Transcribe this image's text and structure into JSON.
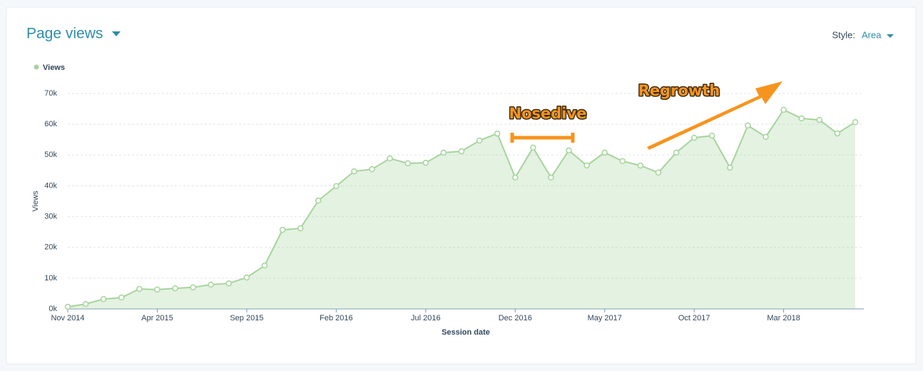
{
  "chart_data": {
    "type": "area",
    "title": "Page views",
    "style_label": "Style:",
    "style_value": "Area",
    "x_label": "Session date",
    "y_label": "Views",
    "categories": [
      "Nov 2014",
      null,
      null,
      null,
      null,
      "Apr 2015",
      null,
      null,
      null,
      null,
      "Sep 2015",
      null,
      null,
      null,
      null,
      "Feb 2016",
      null,
      null,
      null,
      null,
      "Jul 2016",
      null,
      null,
      null,
      null,
      "Dec 2016",
      null,
      null,
      null,
      null,
      "May 2017",
      null,
      null,
      null,
      null,
      "Oct 2017",
      null,
      null,
      null,
      null,
      "Mar 2018",
      null,
      null,
      null,
      null
    ],
    "series": [
      {
        "name": "Views",
        "color": "#a6d49d",
        "values": [
          700,
          1600,
          3200,
          3700,
          6500,
          6300,
          6700,
          7000,
          7900,
          8300,
          10200,
          14100,
          25700,
          26200,
          35200,
          39900,
          44700,
          45400,
          48900,
          47300,
          47500,
          50800,
          51200,
          54700,
          57000,
          42700,
          52400,
          42700,
          51500,
          46600,
          50800,
          48000,
          46600,
          44300,
          50800,
          55600,
          56300,
          45900,
          59600,
          55900,
          64700,
          61900,
          61400,
          57000,
          60700
        ]
      }
    ],
    "ylim": [
      0,
      70000
    ],
    "yticks": [
      {
        "value": 0,
        "label": "0k"
      },
      {
        "value": 10000,
        "label": "10k"
      },
      {
        "value": 20000,
        "label": "20k"
      },
      {
        "value": 30000,
        "label": "30k"
      },
      {
        "value": 40000,
        "label": "40k"
      },
      {
        "value": 50000,
        "label": "50k"
      },
      {
        "value": 60000,
        "label": "60k"
      },
      {
        "value": 70000,
        "label": "70k"
      }
    ],
    "grid": true,
    "annotations": [
      "Nosedive",
      "Regrowth"
    ]
  }
}
